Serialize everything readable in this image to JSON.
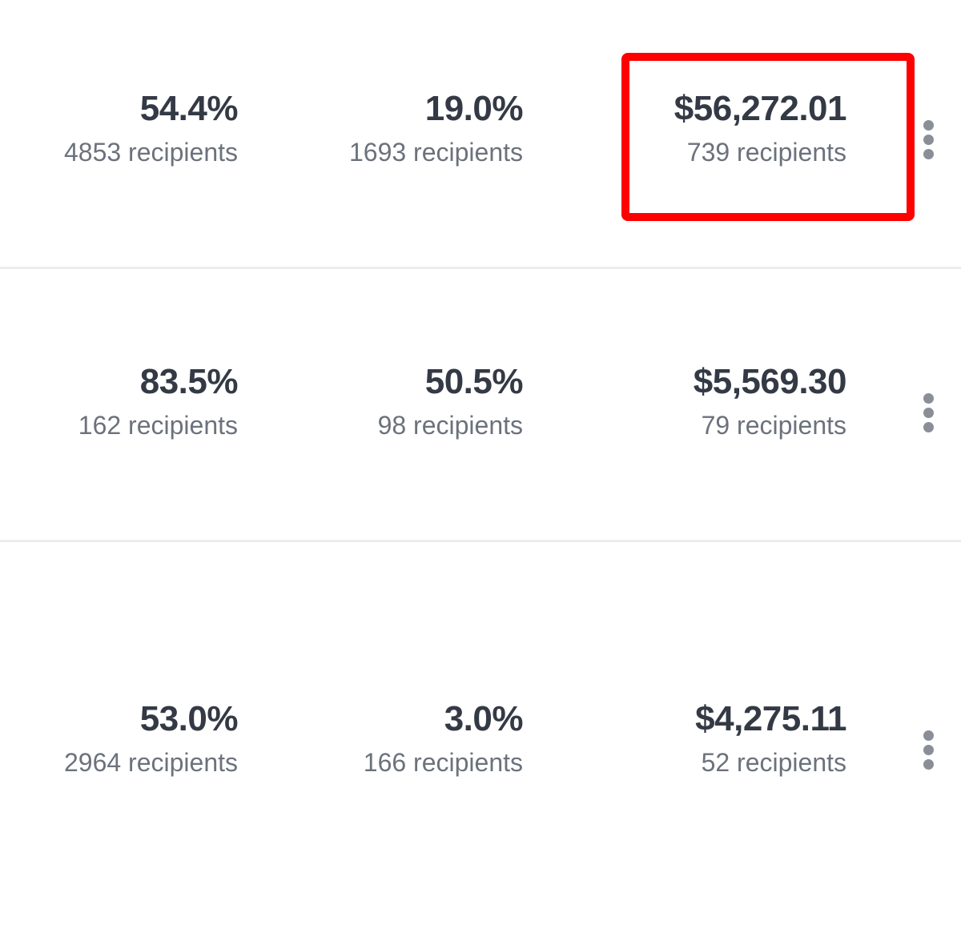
{
  "rows": [
    {
      "cells": [
        {
          "value": "54.4%",
          "recipients": "4853 recipients"
        },
        {
          "value": "19.0%",
          "recipients": "1693 recipients"
        },
        {
          "value": "$56,272.01",
          "recipients": "739 recipients"
        }
      ]
    },
    {
      "cells": [
        {
          "value": "83.5%",
          "recipients": "162 recipients"
        },
        {
          "value": "50.5%",
          "recipients": "98 recipients"
        },
        {
          "value": "$5,569.30",
          "recipients": "79 recipients"
        }
      ]
    },
    {
      "cells": [
        {
          "value": "53.0%",
          "recipients": "2964 recipients"
        },
        {
          "value": "3.0%",
          "recipients": "166 recipients"
        },
        {
          "value": "$4,275.11",
          "recipients": "52 recipients"
        }
      ]
    }
  ]
}
